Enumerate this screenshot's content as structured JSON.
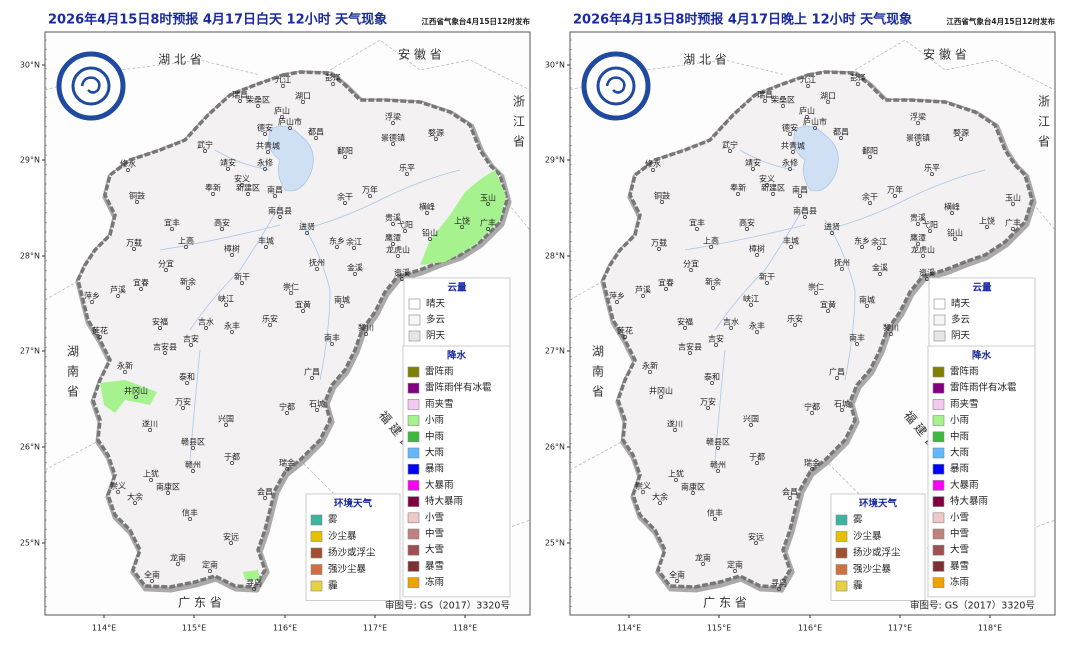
{
  "panels": [
    {
      "title": "2026年4月15日8时预报 4月17日白天 12小时  天气现象"
    },
    {
      "title": "2026年4月15日8时预报 4月17日晚上 12小时  天气现象"
    }
  ],
  "publisher": "江西省气象台4月15日12时发布",
  "lat_labels": [
    "30°N",
    "29°N",
    "28°N",
    "27°N",
    "26°N",
    "25°N"
  ],
  "lon_labels": [
    "114°E",
    "115°E",
    "116°E",
    "117°E",
    "118°E"
  ],
  "provinces": [
    "湖 北 省",
    "安 徽 省",
    "浙江省",
    "湖南省",
    "福 建 省",
    "广 东 省"
  ],
  "cities": [
    "九江",
    "彭泽",
    "湖口",
    "瑞昌",
    "柴桑区",
    "庐山",
    "庐山市",
    "都昌",
    "德安",
    "武宁",
    "共青城",
    "浮梁",
    "景德镇",
    "婺源",
    "鄱阳",
    "修水",
    "永修",
    "靖安",
    "安义",
    "奉新",
    "新建区",
    "南昌",
    "南昌县",
    "乐平",
    "万年",
    "余干",
    "铜鼓",
    "宜丰",
    "高安",
    "进贤",
    "贵溪",
    "鹰潭",
    "横峰",
    "弋阳",
    "上饶",
    "玉山",
    "广丰",
    "铅山",
    "万载",
    "上高",
    "丰城",
    "东乡",
    "余江",
    "樟树",
    "抚州",
    "金溪",
    "资溪",
    "龙虎山",
    "萍乡",
    "芦溪",
    "宜春",
    "分宜",
    "新余",
    "新干",
    "峡江",
    "崇仁",
    "南城",
    "宜黄",
    "乐安",
    "南丰",
    "黎川",
    "莲花",
    "安福",
    "吉水",
    "永丰",
    "吉安",
    "吉安县",
    "泰和",
    "永新",
    "井冈山",
    "遂川",
    "万安",
    "兴国",
    "广昌",
    "宁都",
    "石城",
    "赣州",
    "赣县区",
    "于都",
    "瑞金",
    "上犹",
    "崇义",
    "大余",
    "南康区",
    "信丰",
    "会昌",
    "安远",
    "寻乌",
    "龙南",
    "定南",
    "全南"
  ],
  "legend": {
    "cloud": {
      "title": "云量",
      "items": [
        {
          "name": "晴天",
          "color": "#ffffff"
        },
        {
          "name": "多云",
          "color": "#f6f6f6"
        },
        {
          "name": "阴天",
          "color": "#e6e6e6"
        }
      ]
    },
    "precip": {
      "title": "降水",
      "items": [
        {
          "name": "雷阵雨",
          "color": "#808000"
        },
        {
          "name": "雷阵雨伴有冰雹",
          "color": "#800080"
        },
        {
          "name": "雨夹雪",
          "color": "#f4c8f0"
        },
        {
          "name": "小雨",
          "color": "#a6f28f"
        },
        {
          "name": "中雨",
          "color": "#3dba3d"
        },
        {
          "name": "大雨",
          "color": "#61b8ff"
        },
        {
          "name": "暴雨",
          "color": "#0000ff"
        },
        {
          "name": "大暴雨",
          "color": "#fa00fa"
        },
        {
          "name": "特大暴雨",
          "color": "#800040"
        },
        {
          "name": "小雪",
          "color": "#f0c8c8"
        },
        {
          "name": "中雪",
          "color": "#c08080"
        },
        {
          "name": "大雪",
          "color": "#a05050"
        },
        {
          "name": "暴雪",
          "color": "#803030"
        },
        {
          "name": "冻雨",
          "color": "#f5a000"
        }
      ]
    },
    "env": {
      "title": "环境天气",
      "items": [
        {
          "name": "雾",
          "color": "#3cb4a0"
        },
        {
          "name": "沙尘暴",
          "color": "#e8c000"
        },
        {
          "name": "扬沙或浮尘",
          "color": "#a05030"
        },
        {
          "name": "强沙尘暴",
          "color": "#d07040"
        },
        {
          "name": "霾",
          "color": "#e8d040"
        }
      ]
    }
  },
  "map_number": "审图号: GS（2017）3320号"
}
